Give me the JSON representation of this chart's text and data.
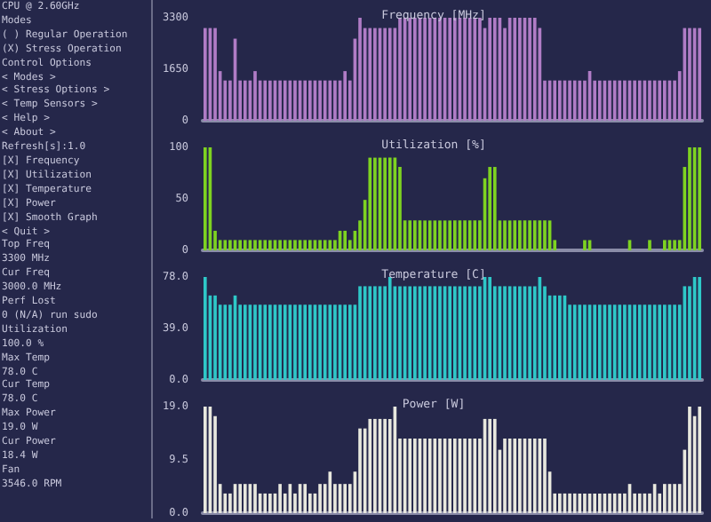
{
  "chart_data": [
    {
      "type": "other",
      "annotations": [
        "CPU @ 2.60GHz",
        "Modes",
        "( ) Regular Operation",
        "(X) Stress Operation",
        "Control Options",
        "< Modes >",
        "< Stress Options >",
        "< Temp Sensors >",
        "< Help >",
        "< About >",
        "Refresh[s]:1.0",
        "[X] Frequency",
        "[X] Utilization",
        "[X] Temperature",
        "[X] Power",
        "[X] Smooth Graph",
        "< Quit >",
        "Top Freq",
        "3300 MHz",
        "Cur Freq",
        "3000.0 MHz",
        "Perf Lost",
        "0 (N/A) run sudo",
        "Utilization",
        "100.0 %",
        "Max Temp",
        "78.0 C",
        "Cur Temp",
        "78.0 C",
        "Max Power",
        "19.0 W",
        "Cur Power",
        "18.4 W",
        "Fan",
        "3546.0 RPM"
      ]
    },
    {
      "type": "bar",
      "title": "Frequency [MHz]",
      "color": "#b07cc6",
      "ylim": [
        0,
        3300
      ],
      "yticks": [
        0,
        1650,
        3300
      ],
      "grid": false,
      "tick_labels": "y",
      "categories": [
        null,
        null,
        null,
        null,
        null,
        null,
        null,
        null,
        null,
        null,
        null,
        null,
        null,
        null,
        null,
        null,
        null,
        null,
        null,
        null,
        null,
        null,
        null,
        null,
        null,
        null,
        null,
        null,
        null,
        null,
        null,
        null,
        null,
        null,
        null,
        null,
        null,
        null,
        null,
        null,
        null,
        null,
        null,
        null,
        null,
        null,
        null,
        null,
        null,
        null,
        null,
        null,
        null,
        null,
        null,
        null,
        null,
        null,
        null,
        null,
        null,
        null,
        null,
        null,
        null,
        null,
        null,
        null,
        null,
        null,
        null,
        null,
        null,
        null,
        null,
        null,
        null,
        null,
        null,
        null,
        null,
        null,
        null,
        null,
        null,
        null,
        null,
        null,
        null,
        null,
        null,
        null,
        null,
        null,
        null,
        null,
        null,
        null,
        null,
        null
      ],
      "values": [
        2970,
        2970,
        2970,
        1590,
        1290,
        1290,
        2630,
        1290,
        1290,
        1290,
        1590,
        1290,
        1290,
        1290,
        1290,
        1290,
        1290,
        1290,
        1290,
        1290,
        1290,
        1290,
        1290,
        1290,
        1290,
        1290,
        1290,
        1290,
        1590,
        1290,
        2630,
        3300,
        2970,
        2970,
        2970,
        2970,
        2970,
        2970,
        2970,
        3300,
        3300,
        3300,
        3300,
        3300,
        3300,
        3300,
        3300,
        3300,
        3300,
        3300,
        3300,
        3300,
        3300,
        3300,
        3300,
        3300,
        2970,
        3300,
        3300,
        3300,
        2970,
        3300,
        3300,
        3300,
        3300,
        3300,
        3300,
        2970,
        1290,
        1290,
        1290,
        1290,
        1290,
        1290,
        1290,
        1290,
        1290,
        1590,
        1290,
        1290,
        1290,
        1290,
        1290,
        1290,
        1290,
        1290,
        1290,
        1290,
        1290,
        1290,
        1290,
        1290,
        1290,
        1290,
        1290,
        1590,
        2970,
        2970,
        2970,
        2970
      ]
    },
    {
      "type": "bar",
      "title": "Utilization [%]",
      "color": "#7ed321",
      "ylim": [
        0,
        100
      ],
      "yticks": [
        0,
        50,
        100
      ],
      "grid": false,
      "tick_labels": "y",
      "categories": [
        null,
        null,
        null,
        null,
        null,
        null,
        null,
        null,
        null,
        null,
        null,
        null,
        null,
        null,
        null,
        null,
        null,
        null,
        null,
        null,
        null,
        null,
        null,
        null,
        null,
        null,
        null,
        null,
        null,
        null,
        null,
        null,
        null,
        null,
        null,
        null,
        null,
        null,
        null,
        null,
        null,
        null,
        null,
        null,
        null,
        null,
        null,
        null,
        null,
        null,
        null,
        null,
        null,
        null,
        null,
        null,
        null,
        null,
        null,
        null,
        null,
        null,
        null,
        null,
        null,
        null,
        null,
        null,
        null,
        null,
        null,
        null,
        null,
        null,
        null,
        null,
        null,
        null,
        null,
        null,
        null,
        null,
        null,
        null,
        null,
        null,
        null,
        null,
        null,
        null,
        null,
        null,
        null,
        null,
        null,
        null,
        null,
        null,
        null,
        null
      ],
      "values": [
        100,
        100,
        19,
        10,
        10,
        10,
        10,
        10,
        10,
        10,
        10,
        10,
        10,
        10,
        10,
        10,
        10,
        10,
        10,
        10,
        10,
        10,
        10,
        10,
        10,
        10,
        10,
        19,
        19,
        10,
        19,
        29,
        49,
        90,
        90,
        90,
        90,
        90,
        90,
        81,
        29,
        29,
        29,
        29,
        29,
        29,
        29,
        29,
        29,
        29,
        29,
        29,
        29,
        29,
        29,
        29,
        70,
        81,
        81,
        29,
        29,
        29,
        29,
        29,
        29,
        29,
        29,
        29,
        29,
        29,
        10,
        0,
        0,
        0,
        0,
        0,
        10,
        10,
        0,
        0,
        0,
        0,
        0,
        0,
        0,
        10,
        0,
        0,
        0,
        10,
        0,
        0,
        10,
        10,
        10,
        10,
        81,
        100,
        100,
        100
      ]
    },
    {
      "type": "bar",
      "title": "Temperature [C]",
      "color": "#2ec8c8",
      "ylim": [
        0,
        78
      ],
      "yticks": [
        {
          "value": 0,
          "label": "0.0"
        },
        {
          "value": 39,
          "label": "39.0"
        },
        {
          "value": 78,
          "label": "78.0"
        }
      ],
      "grid": false,
      "tick_labels": "y",
      "categories": [
        null,
        null,
        null,
        null,
        null,
        null,
        null,
        null,
        null,
        null,
        null,
        null,
        null,
        null,
        null,
        null,
        null,
        null,
        null,
        null,
        null,
        null,
        null,
        null,
        null,
        null,
        null,
        null,
        null,
        null,
        null,
        null,
        null,
        null,
        null,
        null,
        null,
        null,
        null,
        null,
        null,
        null,
        null,
        null,
        null,
        null,
        null,
        null,
        null,
        null,
        null,
        null,
        null,
        null,
        null,
        null,
        null,
        null,
        null,
        null,
        null,
        null,
        null,
        null,
        null,
        null,
        null,
        null,
        null,
        null,
        null,
        null,
        null,
        null,
        null,
        null,
        null,
        null,
        null,
        null,
        null,
        null,
        null,
        null,
        null,
        null,
        null,
        null,
        null,
        null,
        null,
        null,
        null,
        null,
        null,
        null,
        null,
        null,
        null,
        null
      ],
      "values": [
        78,
        64,
        64,
        57,
        57,
        57,
        64,
        57,
        57,
        57,
        57,
        57,
        57,
        57,
        57,
        57,
        57,
        57,
        57,
        57,
        57,
        57,
        57,
        57,
        57,
        57,
        57,
        57,
        57,
        57,
        57,
        71,
        71,
        71,
        71,
        71,
        71,
        78,
        71,
        71,
        71,
        71,
        71,
        71,
        71,
        71,
        71,
        71,
        71,
        71,
        71,
        71,
        71,
        71,
        71,
        71,
        78,
        78,
        71,
        71,
        71,
        71,
        71,
        71,
        71,
        71,
        71,
        78,
        71,
        64,
        64,
        64,
        64,
        57,
        57,
        57,
        57,
        57,
        57,
        57,
        57,
        57,
        57,
        57,
        57,
        57,
        57,
        57,
        57,
        57,
        57,
        57,
        57,
        57,
        57,
        57,
        71,
        71,
        78,
        78
      ]
    },
    {
      "type": "bar",
      "title": "Power [W]",
      "color": "#e8e8de",
      "ylim": [
        0,
        19
      ],
      "yticks": [
        {
          "value": 0,
          "label": "0.0"
        },
        {
          "value": 9.5,
          "label": "9.5"
        },
        {
          "value": 19,
          "label": "19.0"
        }
      ],
      "grid": false,
      "tick_labels": "y",
      "categories": [
        null,
        null,
        null,
        null,
        null,
        null,
        null,
        null,
        null,
        null,
        null,
        null,
        null,
        null,
        null,
        null,
        null,
        null,
        null,
        null,
        null,
        null,
        null,
        null,
        null,
        null,
        null,
        null,
        null,
        null,
        null,
        null,
        null,
        null,
        null,
        null,
        null,
        null,
        null,
        null,
        null,
        null,
        null,
        null,
        null,
        null,
        null,
        null,
        null,
        null,
        null,
        null,
        null,
        null,
        null,
        null,
        null,
        null,
        null,
        null,
        null,
        null,
        null,
        null,
        null,
        null,
        null,
        null,
        null,
        null,
        null,
        null,
        null,
        null,
        null,
        null,
        null,
        null,
        null,
        null,
        null,
        null,
        null,
        null,
        null,
        null,
        null,
        null,
        null,
        null,
        null,
        null,
        null,
        null,
        null,
        null,
        null,
        null,
        null,
        null
      ],
      "values": [
        19,
        19,
        17.3,
        5.2,
        3.5,
        3.5,
        5.2,
        5.2,
        5.2,
        5.2,
        5.2,
        3.5,
        3.5,
        3.5,
        3.5,
        5.2,
        3.5,
        5.2,
        3.5,
        5.2,
        5.2,
        3.5,
        3.5,
        5.2,
        5.2,
        7.4,
        5.2,
        5.2,
        5.2,
        5.2,
        7.4,
        15.1,
        15.1,
        16.8,
        16.8,
        16.8,
        16.8,
        16.8,
        19,
        13.3,
        13.3,
        13.3,
        13.3,
        13.3,
        13.3,
        13.3,
        13.3,
        13.3,
        13.3,
        13.3,
        13.3,
        13.3,
        13.3,
        13.3,
        13.3,
        13.3,
        16.8,
        16.8,
        16.8,
        11.3,
        13.3,
        13.3,
        13.3,
        13.3,
        13.3,
        13.3,
        13.3,
        13.3,
        13.3,
        7.4,
        3.5,
        3.5,
        3.5,
        3.5,
        3.5,
        3.5,
        3.5,
        3.5,
        3.5,
        3.5,
        3.5,
        3.5,
        3.5,
        3.5,
        3.5,
        5.2,
        3.5,
        3.5,
        3.5,
        3.5,
        5.2,
        3.5,
        5.2,
        5.2,
        5.2,
        5.2,
        11.3,
        19,
        17.3,
        19
      ]
    }
  ]
}
